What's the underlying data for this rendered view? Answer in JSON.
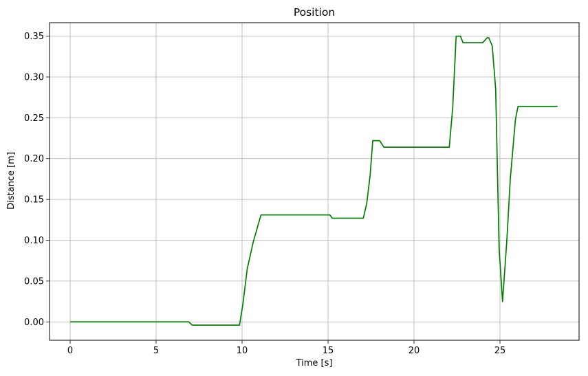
{
  "chart_data": {
    "type": "line",
    "title": "Position",
    "xlabel": "Time [s]",
    "ylabel": "Distance [m]",
    "xlim": [
      -1.2,
      29.6
    ],
    "ylim": [
      -0.0225,
      0.3665
    ],
    "xticks": [
      0,
      5,
      10,
      15,
      20,
      25
    ],
    "xtick_labels": [
      "0",
      "5",
      "10",
      "15",
      "20",
      "25"
    ],
    "yticks": [
      0.0,
      0.05,
      0.1,
      0.15,
      0.2,
      0.25,
      0.3,
      0.35
    ],
    "ytick_labels": [
      "0.00",
      "0.05",
      "0.10",
      "0.15",
      "0.20",
      "0.25",
      "0.30",
      "0.35"
    ],
    "grid": true,
    "legend": "none",
    "series": [
      {
        "color": "#008000",
        "x": [
          0.0,
          6.9,
          7.1,
          7.3,
          9.85,
          10.05,
          10.3,
          10.65,
          11.1,
          15.1,
          15.25,
          17.05,
          17.25,
          17.45,
          17.6,
          18.0,
          18.25,
          22.05,
          22.25,
          22.45,
          22.7,
          22.85,
          24.0,
          24.25,
          24.35,
          24.55,
          24.75,
          24.95,
          25.15,
          25.4,
          25.6,
          25.9,
          26.05,
          28.35
        ],
        "y": [
          0.0,
          0.0,
          -0.004,
          -0.004,
          -0.004,
          0.022,
          0.065,
          0.098,
          0.131,
          0.131,
          0.127,
          0.127,
          0.145,
          0.18,
          0.222,
          0.222,
          0.214,
          0.214,
          0.262,
          0.35,
          0.35,
          0.342,
          0.342,
          0.348,
          0.348,
          0.338,
          0.285,
          0.09,
          0.025,
          0.1,
          0.175,
          0.248,
          0.264,
          0.264
        ]
      }
    ]
  }
}
